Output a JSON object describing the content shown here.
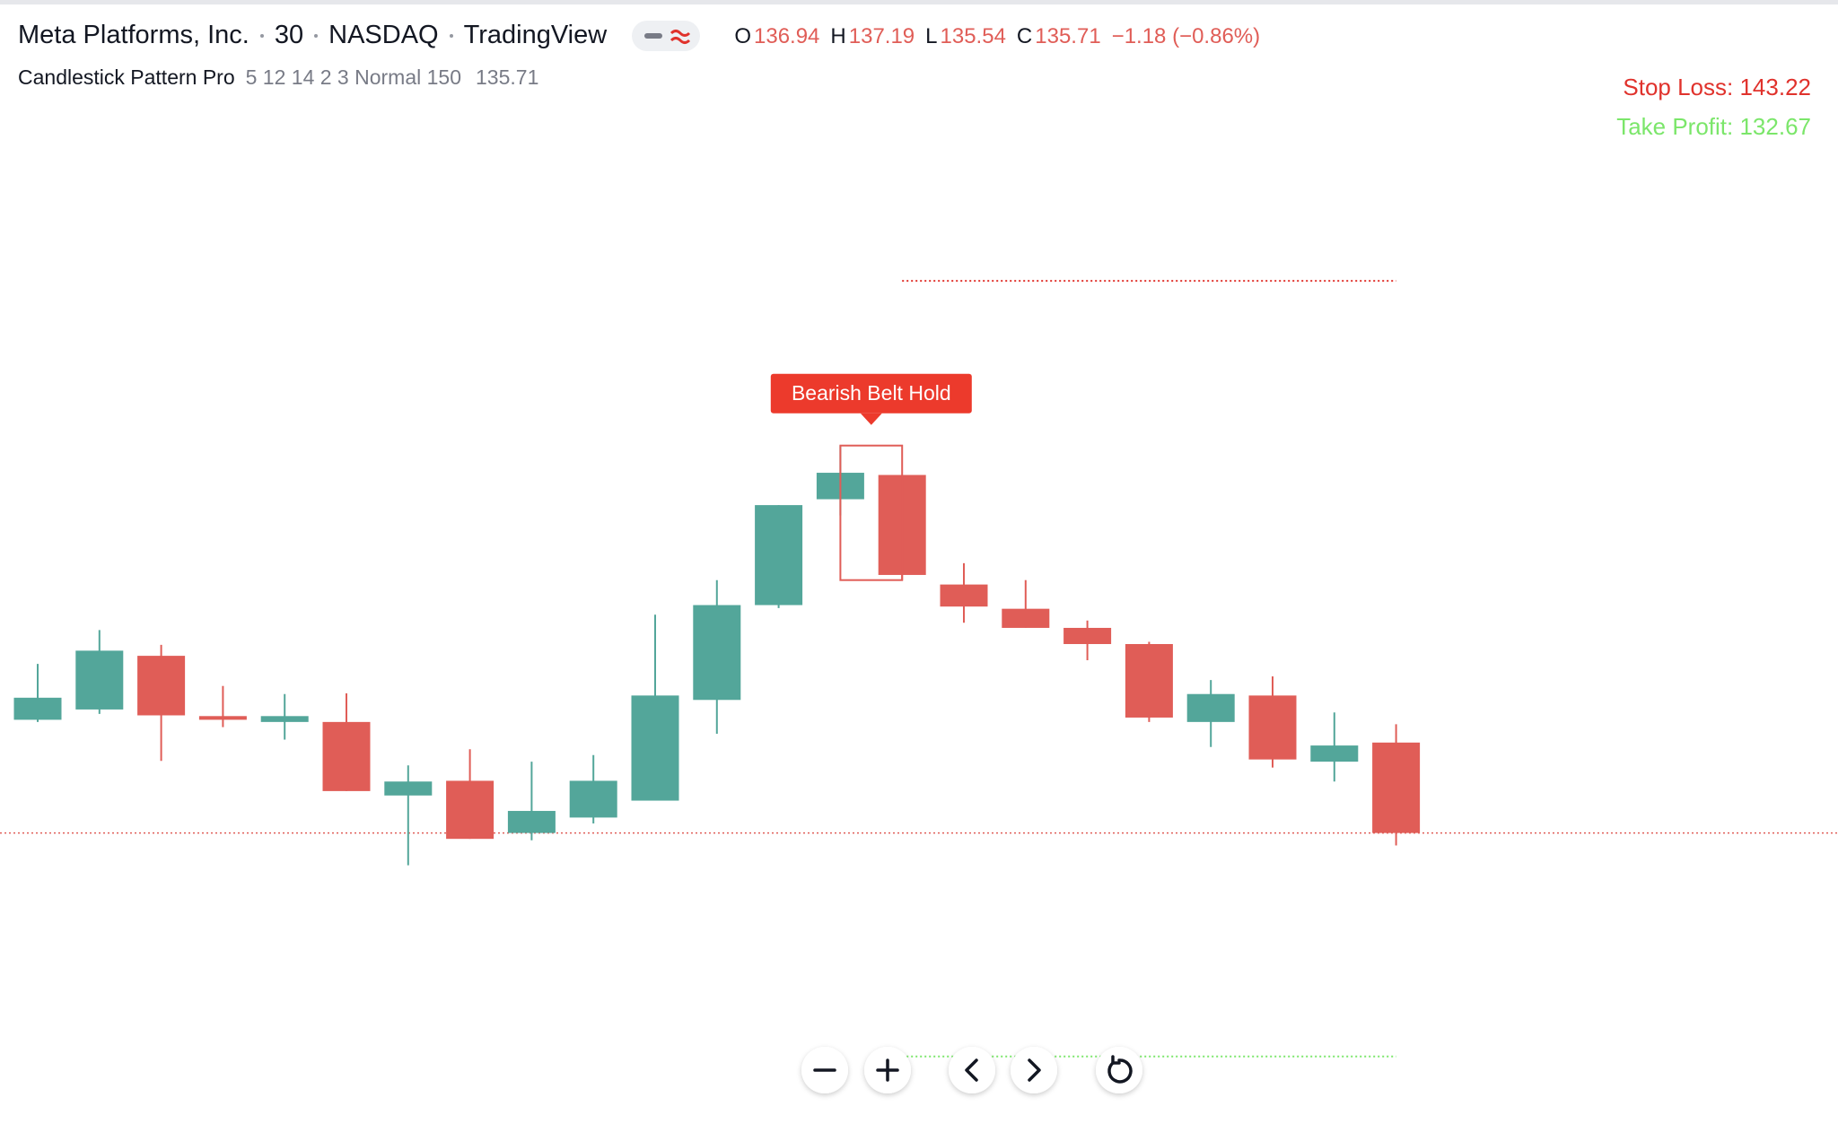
{
  "header": {
    "symbol": "Meta Platforms, Inc.",
    "interval": "30",
    "exchange": "NASDAQ",
    "source": "TradingView",
    "ohlc_labels": [
      "O",
      "H",
      "L",
      "C"
    ],
    "change": "−1.18 (−0.86%)"
  },
  "indicator": {
    "name": "Candlestick Pattern Pro",
    "params": "5 12 14 2 3 Normal 150"
  },
  "chart_data": {
    "type": "candlestick",
    "open": [
      137.25,
      137.39,
      138.12,
      137.3,
      137.22,
      137.22,
      136.22,
      136.42,
      135.71,
      135.92,
      136.15,
      137.52,
      138.81,
      140.25,
      140.58,
      139.09,
      138.76,
      138.5,
      138.28,
      137.22,
      137.58,
      136.68,
      136.94
    ],
    "high": [
      138.01,
      138.47,
      138.27,
      137.71,
      137.6,
      137.61,
      136.63,
      136.85,
      136.68,
      136.77,
      138.68,
      139.15,
      140.17,
      140.98,
      140.58,
      139.38,
      139.15,
      138.6,
      138.31,
      137.79,
      137.84,
      137.35,
      137.19
    ],
    "low": [
      137.22,
      137.33,
      136.69,
      137.15,
      136.98,
      136.28,
      135.27,
      135.63,
      135.61,
      135.84,
      136.15,
      137.06,
      138.77,
      140.03,
      139.15,
      138.57,
      138.5,
      138.06,
      137.22,
      136.88,
      136.6,
      136.41,
      135.54
    ],
    "close": [
      137.55,
      138.19,
      137.31,
      137.25,
      137.3,
      136.28,
      136.41,
      135.63,
      136.01,
      136.42,
      137.58,
      138.81,
      140.17,
      140.61,
      139.22,
      138.79,
      138.5,
      138.28,
      137.28,
      137.6,
      136.71,
      136.9,
      135.71
    ],
    "up_color": "#53a69a",
    "down_color": "#e05d57",
    "ylim": [
      131.52,
      146.98
    ],
    "current_price_color": "#e05d57",
    "stop_loss": {
      "value": 143.22,
      "label": "Stop Loss: 143.22",
      "color": "#e0322c"
    },
    "take_profit": {
      "value": 132.67,
      "label": "Take Profit: 132.67",
      "color": "#7be66a"
    },
    "pattern": {
      "label": "Bearish Belt Hold",
      "start": 13,
      "end": 14,
      "color": "#ec3a2c"
    }
  }
}
